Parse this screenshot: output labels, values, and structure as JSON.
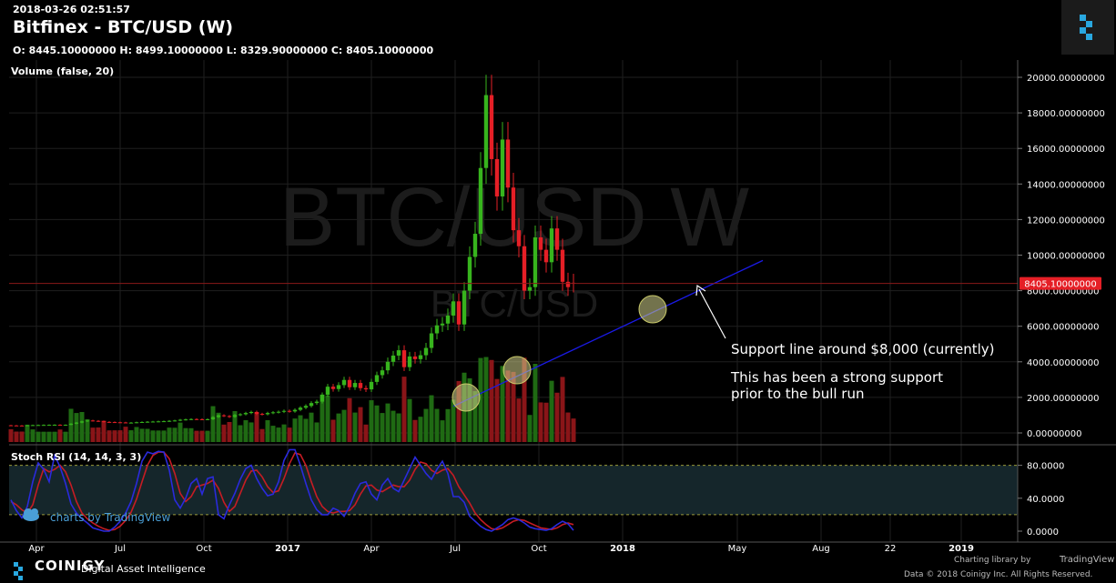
{
  "header": {
    "timestamp": "2018-03-26 02:51:57",
    "title": "Bitfinex - BTC/USD (W)",
    "ohlc": "O: 8445.10000000 H: 8499.10000000 L: 8329.90000000 C: 8405.10000000"
  },
  "watermark": {
    "main": "BTC/USD W",
    "sub": "BTC/USD"
  },
  "colors": {
    "up": "#37b41d",
    "down": "#e51f26",
    "vol_up": "#1f6a13",
    "vol_down": "#8a1518",
    "trend": "#1a1ae6",
    "rsi_k": "#2a2adc",
    "rsi_d": "#c61c24",
    "price_tag": "#e51f26"
  },
  "chart_data": {
    "type": "candlestick",
    "ylim": [
      -500,
      20500
    ],
    "y_ticks": [
      "20000.00000000",
      "18000.00000000",
      "16000.00000000",
      "14000.00000000",
      "12000.00000000",
      "10000.00000000",
      "8000.00000000",
      "6000.00000000",
      "4000.00000000",
      "2000.00000000",
      "0.00000000"
    ],
    "x_ticks": [
      "Apr",
      "Jul",
      "Oct",
      "2017",
      "Apr",
      "Jul",
      "Oct",
      "2018",
      "May",
      "Aug",
      "22",
      "2019"
    ],
    "last_price": "8405.10000000",
    "volume_label": "Volume (false, 20)",
    "rsi_label": "Stoch RSI (14, 14, 3, 3)",
    "rsi_ticks": [
      "80.0000",
      "40.0000",
      "0.0000"
    ],
    "annotations": [
      "Support line around $8,000 (currently)",
      "This has been a strong support",
      "prior to the bull run"
    ],
    "close": [
      420,
      415,
      410,
      430,
      440,
      445,
      450,
      455,
      460,
      450,
      455,
      520,
      580,
      650,
      700,
      680,
      660,
      620,
      610,
      600,
      590,
      570,
      580,
      600,
      615,
      630,
      640,
      650,
      660,
      680,
      700,
      740,
      760,
      780,
      770,
      760,
      770,
      890,
      990,
      950,
      900,
      1010,
      1050,
      1120,
      1180,
      1070,
      1050,
      1120,
      1160,
      1190,
      1240,
      1210,
      1300,
      1420,
      1520,
      1680,
      1760,
      2150,
      2600,
      2470,
      2690,
      2980,
      2570,
      2810,
      2520,
      2450,
      2870,
      3250,
      3520,
      4000,
      4350,
      4650,
      3700,
      4300,
      4150,
      4370,
      4780,
      5600,
      6050,
      6150,
      6600,
      7400,
      6100,
      8000,
      9900,
      11200,
      14900,
      19000,
      15400,
      13300,
      16500,
      13800,
      11400,
      10500,
      8000,
      8200,
      11000,
      10300,
      9600,
      11500,
      10300,
      8500,
      8200,
      8405
    ],
    "open": [
      430,
      420,
      415,
      410,
      430,
      440,
      445,
      450,
      455,
      460,
      450,
      455,
      520,
      580,
      650,
      700,
      680,
      660,
      620,
      610,
      600,
      590,
      570,
      580,
      600,
      615,
      630,
      640,
      650,
      660,
      680,
      700,
      740,
      760,
      780,
      770,
      760,
      770,
      890,
      990,
      950,
      900,
      1010,
      1050,
      1120,
      1180,
      1070,
      1050,
      1120,
      1160,
      1190,
      1240,
      1210,
      1300,
      1420,
      1520,
      1680,
      1760,
      2150,
      2600,
      2470,
      2690,
      2980,
      2570,
      2810,
      2520,
      2450,
      2870,
      3250,
      3520,
      4000,
      4350,
      4650,
      3700,
      4300,
      4150,
      4370,
      4780,
      5600,
      6050,
      6150,
      6600,
      7400,
      6100,
      8000,
      9900,
      11200,
      14900,
      19000,
      15400,
      13300,
      16500,
      13800,
      11400,
      10500,
      8000,
      8200,
      11000,
      10300,
      9600,
      11500,
      10300,
      8500,
      8445
    ],
    "stoch_k": [
      38,
      25,
      16,
      30,
      60,
      83,
      75,
      60,
      92,
      78,
      58,
      33,
      22,
      15,
      10,
      4,
      2,
      0,
      0,
      5,
      12,
      22,
      36,
      58,
      85,
      96,
      94,
      97,
      96,
      74,
      38,
      28,
      40,
      58,
      64,
      45,
      64,
      66,
      20,
      15,
      32,
      46,
      63,
      76,
      80,
      64,
      52,
      43,
      45,
      60,
      86,
      99,
      99,
      80,
      58,
      38,
      26,
      20,
      20,
      28,
      25,
      18,
      30,
      46,
      58,
      60,
      45,
      38,
      56,
      64,
      52,
      48,
      62,
      76,
      90,
      80,
      70,
      63,
      75,
      85,
      70,
      42,
      42,
      35,
      18,
      12,
      6,
      2,
      0,
      4,
      8,
      14,
      16,
      14,
      10,
      5,
      3,
      2,
      1,
      3,
      8,
      12,
      9,
      1
    ],
    "stoch_d": [
      36,
      32,
      26,
      22,
      32,
      56,
      76,
      72,
      75,
      80,
      72,
      56,
      36,
      22,
      15,
      10,
      6,
      3,
      1,
      2,
      6,
      13,
      23,
      39,
      60,
      80,
      92,
      96,
      96,
      88,
      70,
      46,
      36,
      42,
      54,
      56,
      58,
      62,
      52,
      35,
      24,
      30,
      46,
      62,
      73,
      74,
      66,
      54,
      47,
      49,
      64,
      82,
      95,
      93,
      80,
      60,
      42,
      30,
      24,
      22,
      24,
      24,
      25,
      32,
      45,
      55,
      56,
      50,
      48,
      52,
      56,
      54,
      54,
      62,
      75,
      84,
      82,
      74,
      70,
      74,
      76,
      68,
      54,
      44,
      34,
      22,
      14,
      8,
      3,
      2,
      4,
      8,
      12,
      14,
      13,
      10,
      7,
      4,
      3,
      2,
      4,
      8,
      10,
      8
    ]
  }
}
